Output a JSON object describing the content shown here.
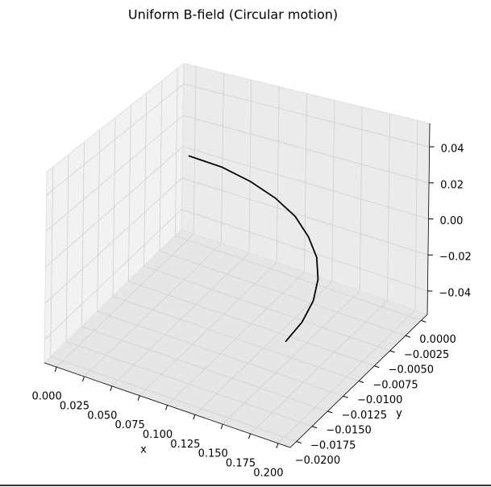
{
  "chart_data": {
    "type": "line3d",
    "title": "Uniform B-field (Circular motion)",
    "xlabel": "x",
    "ylabel": "y",
    "series": [
      {
        "color": "#000000",
        "x": [
          0,
          0.0313,
          0.0618,
          0.0908,
          0.1176,
          0.1414,
          0.1618,
          0.1782,
          0.1902,
          0.1975,
          0.2
        ],
        "y": [
          0,
          -0.0002,
          -0.001,
          -0.0022,
          -0.0038,
          -0.0059,
          -0.0082,
          -0.0109,
          -0.0138,
          -0.0169,
          -0.02
        ],
        "z": [
          0,
          0,
          0,
          0,
          0,
          0,
          0,
          0,
          0,
          0,
          0
        ]
      }
    ],
    "xlim": [
      -0.011,
      0.211
    ],
    "ylim": [
      -0.021,
      0.001
    ],
    "zlim": [
      -0.053,
      0.053
    ],
    "xticks": [
      {
        "value": 0,
        "label": "0.000"
      },
      {
        "value": 0.025,
        "label": "0.025"
      },
      {
        "value": 0.05,
        "label": "0.050"
      },
      {
        "value": 0.075,
        "label": "0.075"
      },
      {
        "value": 0.1,
        "label": "0.100"
      },
      {
        "value": 0.125,
        "label": "0.125"
      },
      {
        "value": 0.15,
        "label": "0.150"
      },
      {
        "value": 0.175,
        "label": "0.175"
      },
      {
        "value": 0.2,
        "label": "0.200"
      }
    ],
    "yticks": [
      {
        "value": 0,
        "label": "0.0000"
      },
      {
        "value": -0.0025,
        "label": "−0.0025"
      },
      {
        "value": -0.005,
        "label": "−0.0050"
      },
      {
        "value": -0.0075,
        "label": "−0.0075"
      },
      {
        "value": -0.01,
        "label": "−0.0100"
      },
      {
        "value": -0.0125,
        "label": "−0.0125"
      },
      {
        "value": -0.015,
        "label": "−0.0150"
      },
      {
        "value": -0.0175,
        "label": "−0.0175"
      },
      {
        "value": -0.02,
        "label": "−0.0200"
      }
    ],
    "zticks": [
      {
        "value": -0.04,
        "label": "−0.04"
      },
      {
        "value": -0.02,
        "label": "−0.02"
      },
      {
        "value": 0,
        "label": "0.00"
      },
      0.02,
      0.04
    ],
    "grid": true
  }
}
